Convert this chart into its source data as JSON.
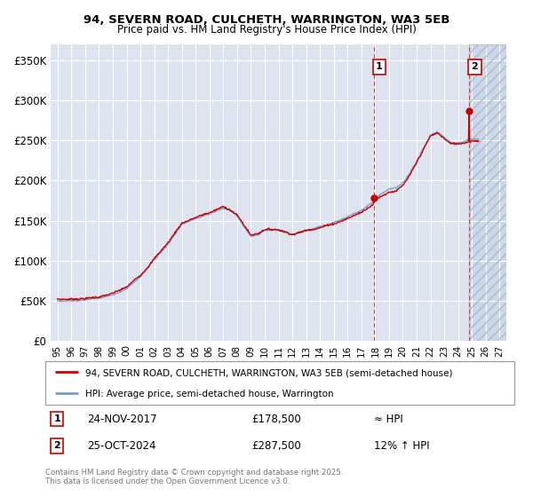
{
  "title_line1": "94, SEVERN ROAD, CULCHETH, WARRINGTON, WA3 5EB",
  "title_line2": "Price paid vs. HM Land Registry's House Price Index (HPI)",
  "background_color": "#ffffff",
  "plot_bg_color": "#dde4f0",
  "grid_color": "#ffffff",
  "hpi_line_color": "#7799cc",
  "price_line_color": "#cc0000",
  "marker1_color": "#cc0000",
  "marker2_color": "#cc0000",
  "shade_color": "#c8d4e8",
  "ylim": [
    0,
    370000
  ],
  "yticks": [
    0,
    50000,
    100000,
    150000,
    200000,
    250000,
    300000,
    350000
  ],
  "ytick_labels": [
    "£0",
    "£50K",
    "£100K",
    "£150K",
    "£200K",
    "£250K",
    "£300K",
    "£350K"
  ],
  "xlim_start": 1994.5,
  "xlim_end": 2027.5,
  "xticks": [
    1995,
    1996,
    1997,
    1998,
    1999,
    2000,
    2001,
    2002,
    2003,
    2004,
    2005,
    2006,
    2007,
    2008,
    2009,
    2010,
    2011,
    2012,
    2013,
    2014,
    2015,
    2016,
    2017,
    2018,
    2019,
    2020,
    2021,
    2022,
    2023,
    2024,
    2025,
    2026,
    2027
  ],
  "legend_label1": "94, SEVERN ROAD, CULCHETH, WARRINGTON, WA3 5EB (semi-detached house)",
  "legend_label2": "HPI: Average price, semi-detached house, Warrington",
  "annotation1_label": "1",
  "annotation1_date": "24-NOV-2017",
  "annotation1_price": "£178,500",
  "annotation1_hpi": "≈ HPI",
  "annotation2_label": "2",
  "annotation2_date": "25-OCT-2024",
  "annotation2_price": "£287,500",
  "annotation2_hpi": "12% ↑ HPI",
  "footnote": "Contains HM Land Registry data © Crown copyright and database right 2025.\nThis data is licensed under the Open Government Licence v3.0.",
  "marker1_x": 2017.9,
  "marker1_y": 178500,
  "marker2_x": 2024.81,
  "marker2_y": 287500,
  "vline1_x": 2017.9,
  "vline2_x": 2024.81,
  "shade_start": 2024.81
}
